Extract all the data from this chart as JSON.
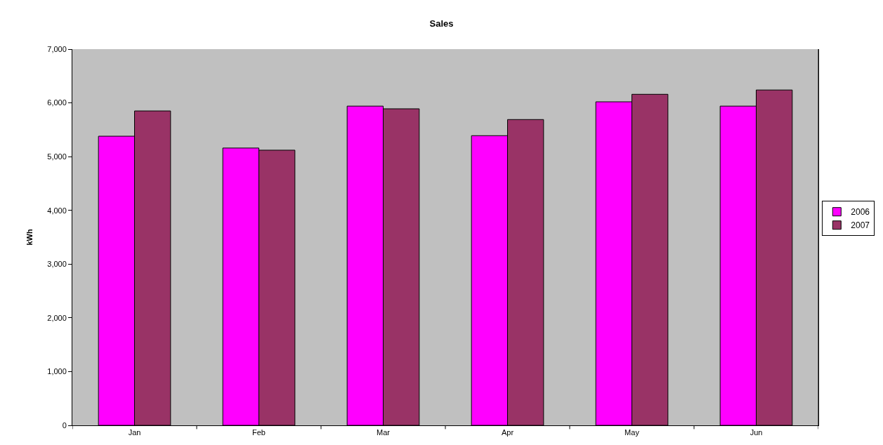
{
  "chart_data": {
    "type": "bar",
    "title": "Sales",
    "ylabel": "kWh",
    "categories": [
      "Jan",
      "Feb",
      "Mar",
      "Apr",
      "May",
      "Jun"
    ],
    "series": [
      {
        "name": "2006",
        "color": "#ff00ff",
        "values": [
          5380,
          5160,
          5940,
          5390,
          6020,
          5940
        ]
      },
      {
        "name": "2007",
        "color": "#993366",
        "values": [
          5850,
          5120,
          5890,
          5690,
          6160,
          6240
        ]
      }
    ],
    "ylim": [
      0,
      7000
    ],
    "yticks": [
      {
        "value": 0,
        "label": "0"
      },
      {
        "value": 1000,
        "label": "1,000"
      },
      {
        "value": 2000,
        "label": "2,000"
      },
      {
        "value": 3000,
        "label": "3,000"
      },
      {
        "value": 4000,
        "label": "4,000"
      },
      {
        "value": 5000,
        "label": "5,000"
      },
      {
        "value": 6000,
        "label": "6,000"
      },
      {
        "value": 7000,
        "label": "7,000"
      }
    ],
    "grid": false,
    "legend": "right"
  }
}
